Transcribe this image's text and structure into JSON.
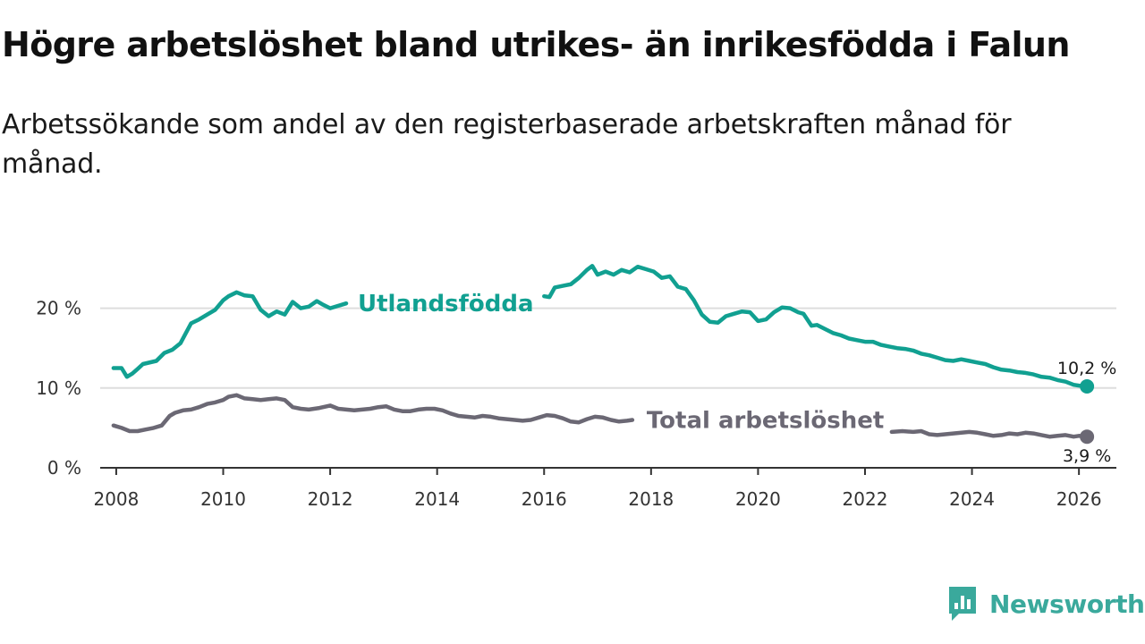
{
  "title": "Högre arbetslöshet bland utrikes- än inrikesfödda i Falun",
  "subtitle": "Arbetssökande som andel av den registerbaserade arbetskraften månad för månad.",
  "brand": "Newsworthy",
  "colors": {
    "utlandsfodda": "#11a091",
    "total": "#6b6874",
    "grid": "#dddddd",
    "axis": "#333333",
    "brand": "#3aa99c"
  },
  "chart_data": {
    "type": "line",
    "title": "Högre arbetslöshet bland utrikes- än inrikesfödda i Falun",
    "xlabel": "",
    "ylabel": "",
    "xlim": [
      2007.7,
      2026.7
    ],
    "ylim": [
      0,
      25
    ],
    "x_ticks": [
      2008,
      2010,
      2012,
      2014,
      2016,
      2018,
      2020,
      2022,
      2024,
      2026
    ],
    "x_tick_labels": [
      "2008",
      "2010",
      "2012",
      "2014",
      "2016",
      "2018",
      "2020",
      "2022",
      "2024",
      "2026"
    ],
    "y_ticks": [
      0,
      10,
      20
    ],
    "y_tick_labels": [
      "0 %",
      "10 %",
      "20 %"
    ],
    "grid": "horizontal",
    "series": [
      {
        "name": "Utlandsfödda",
        "label_anchor_x": 2012.35,
        "end_label": "10,2 %",
        "segments": [
          {
            "x": [
              2007.95,
              2008.1,
              2008.2,
              2008.3,
              2008.4,
              2008.5,
              2008.75,
              2008.9,
              2009.05,
              2009.2,
              2009.4,
              2009.55,
              2009.7,
              2009.85,
              2010.0,
              2010.1,
              2010.25,
              2010.4,
              2010.55,
              2010.7,
              2010.85,
              2011.0,
              2011.15,
              2011.3,
              2011.45,
              2011.6,
              2011.75,
              2011.85,
              2012.0,
              2012.15,
              2012.3
            ],
            "y": [
              12.5,
              12.5,
              11.4,
              11.8,
              12.4,
              13.0,
              13.4,
              14.4,
              14.8,
              15.6,
              18.1,
              18.6,
              19.2,
              19.8,
              21.0,
              21.5,
              22.0,
              21.6,
              21.5,
              19.8,
              19.0,
              19.6,
              19.2,
              20.8,
              20.0,
              20.2,
              20.9,
              20.5,
              20.0,
              20.3,
              20.6
            ]
          },
          {
            "x": [
              2016.0,
              2016.1,
              2016.2,
              2016.35,
              2016.5,
              2016.65,
              2016.8,
              2016.9,
              2017.0,
              2017.15,
              2017.3,
              2017.45,
              2017.6,
              2017.75,
              2017.9,
              2018.05,
              2018.2,
              2018.35,
              2018.5,
              2018.65,
              2018.8,
              2018.95,
              2019.1,
              2019.25,
              2019.4,
              2019.55,
              2019.7,
              2019.85,
              2020.0,
              2020.15,
              2020.3,
              2020.45,
              2020.6,
              2020.75,
              2020.85,
              2021.0,
              2021.1,
              2021.25,
              2021.4,
              2021.55,
              2021.7,
              2021.85,
              2022.0,
              2022.15,
              2022.3,
              2022.45,
              2022.6,
              2022.75,
              2022.9,
              2023.05,
              2023.2,
              2023.35,
              2023.5,
              2023.65,
              2023.8,
              2023.95,
              2024.1,
              2024.25,
              2024.4,
              2024.55,
              2024.7,
              2024.85,
              2025.0,
              2025.15,
              2025.3,
              2025.45,
              2025.6,
              2025.75,
              2025.9,
              2026.0,
              2026.15
            ],
            "y": [
              21.5,
              21.4,
              22.6,
              22.8,
              23.0,
              23.8,
              24.8,
              25.3,
              24.2,
              24.6,
              24.2,
              24.8,
              24.5,
              25.2,
              24.9,
              24.6,
              23.8,
              24.0,
              22.7,
              22.4,
              21.0,
              19.2,
              18.3,
              18.2,
              19.0,
              19.3,
              19.6,
              19.5,
              18.4,
              18.6,
              19.5,
              20.1,
              20.0,
              19.5,
              19.3,
              17.8,
              17.9,
              17.4,
              16.9,
              16.6,
              16.2,
              16.0,
              15.8,
              15.8,
              15.4,
              15.2,
              15.0,
              14.9,
              14.7,
              14.3,
              14.1,
              13.8,
              13.5,
              13.4,
              13.6,
              13.4,
              13.2,
              13.0,
              12.6,
              12.3,
              12.2,
              12.0,
              11.9,
              11.7,
              11.4,
              11.3,
              11.0,
              10.8,
              10.4,
              10.3,
              10.2
            ]
          }
        ]
      },
      {
        "name": "Total arbetslöshet",
        "label_anchor_x": 2017.75,
        "end_label": "3,9 %",
        "segments": [
          {
            "x": [
              2007.95,
              2008.1,
              2008.25,
              2008.4,
              2008.55,
              2008.7,
              2008.85,
              2009.0,
              2009.1,
              2009.25,
              2009.4,
              2009.55,
              2009.7,
              2009.85,
              2010.0,
              2010.1,
              2010.25,
              2010.4,
              2010.55,
              2010.7,
              2010.85,
              2011.0,
              2011.15,
              2011.3,
              2011.45,
              2011.6,
              2011.8,
              2012.0,
              2012.15,
              2012.3,
              2012.45,
              2012.6,
              2012.75,
              2012.9,
              2013.05,
              2013.2,
              2013.35,
              2013.5,
              2013.65,
              2013.8,
              2013.95,
              2014.1,
              2014.25,
              2014.4,
              2014.55,
              2014.7,
              2014.85,
              2015.0,
              2015.15,
              2015.3,
              2015.45,
              2015.6,
              2015.75,
              2015.9,
              2016.05,
              2016.2,
              2016.35,
              2016.5,
              2016.65,
              2016.8,
              2016.95,
              2017.1,
              2017.25,
              2017.4,
              2017.55,
              2017.65
            ],
            "y": [
              5.3,
              5.0,
              4.6,
              4.6,
              4.8,
              5.0,
              5.3,
              6.5,
              6.9,
              7.2,
              7.3,
              7.6,
              8.0,
              8.2,
              8.5,
              8.9,
              9.1,
              8.7,
              8.6,
              8.5,
              8.6,
              8.7,
              8.5,
              7.6,
              7.4,
              7.3,
              7.5,
              7.8,
              7.4,
              7.3,
              7.2,
              7.3,
              7.4,
              7.6,
              7.7,
              7.3,
              7.1,
              7.1,
              7.3,
              7.4,
              7.4,
              7.2,
              6.8,
              6.5,
              6.4,
              6.3,
              6.5,
              6.4,
              6.2,
              6.1,
              6.0,
              5.9,
              6.0,
              6.3,
              6.6,
              6.5,
              6.2,
              5.8,
              5.7,
              6.1,
              6.4,
              6.3,
              6.0,
              5.8,
              5.9,
              6.0
            ]
          },
          {
            "x": [
              2022.5,
              2022.7,
              2022.9,
              2023.05,
              2023.2,
              2023.35,
              2023.5,
              2023.65,
              2023.8,
              2023.95,
              2024.1,
              2024.25,
              2024.4,
              2024.55,
              2024.7,
              2024.85,
              2025.0,
              2025.15,
              2025.3,
              2025.45,
              2025.6,
              2025.75,
              2025.9,
              2026.0,
              2026.15
            ],
            "y": [
              4.5,
              4.6,
              4.5,
              4.6,
              4.2,
              4.1,
              4.2,
              4.3,
              4.4,
              4.5,
              4.4,
              4.2,
              4.0,
              4.1,
              4.3,
              4.2,
              4.4,
              4.3,
              4.1,
              3.9,
              4.0,
              4.1,
              3.9,
              4.0,
              3.9
            ]
          }
        ]
      }
    ]
  }
}
